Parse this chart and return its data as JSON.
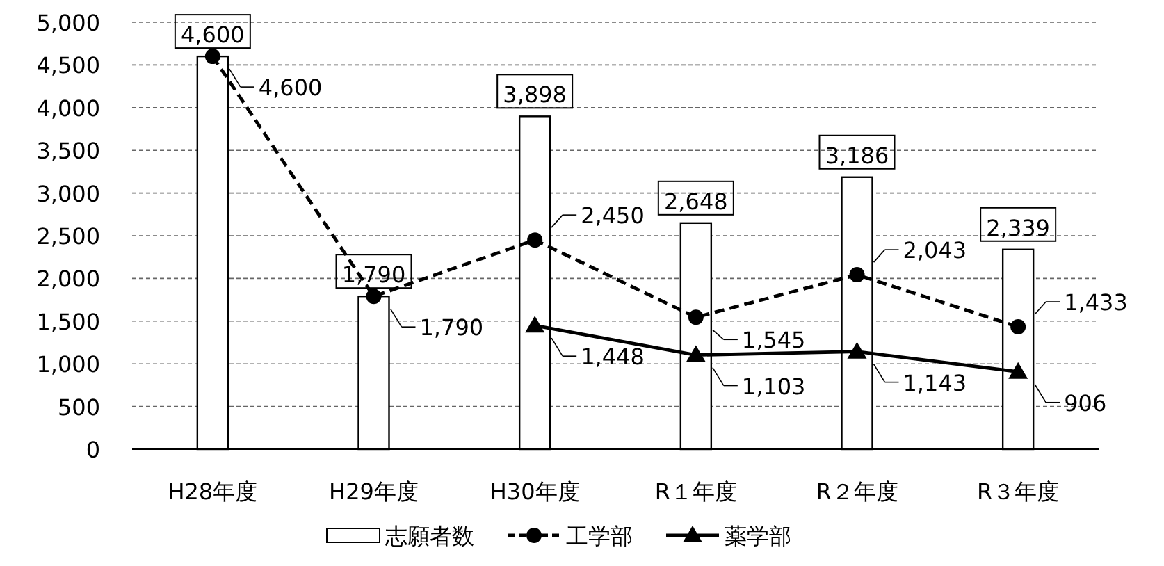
{
  "chart_data": {
    "type": "bar",
    "categories": [
      "H28年度",
      "H29年度",
      "H30年度",
      "R１年度",
      "R２年度",
      "R３年度"
    ],
    "series": [
      {
        "name": "志願者数",
        "type": "bar",
        "color": "#ffffff",
        "values": [
          4600,
          1790,
          3898,
          2648,
          3186,
          2339
        ],
        "value_labels": [
          "4,600",
          "1,790",
          "3,898",
          "2,648",
          "3,186",
          "2,339"
        ]
      },
      {
        "name": "工学部",
        "type": "line",
        "color": "#000000",
        "line_style": "dashed",
        "marker": "circle",
        "values": [
          4600,
          1790,
          2450,
          1545,
          2043,
          1433
        ],
        "value_labels": [
          "4,600",
          "1,790",
          "2,450",
          "1,545",
          "2,043",
          "1,433"
        ]
      },
      {
        "name": "薬学部",
        "type": "line",
        "color": "#000000",
        "line_style": "solid",
        "marker": "triangle",
        "values": [
          null,
          null,
          1448,
          1103,
          1143,
          906
        ],
        "value_labels": [
          null,
          null,
          "1,448",
          "1,103",
          "1,143",
          "906"
        ]
      }
    ],
    "ylim": [
      0,
      5000
    ],
    "yticks": [
      {
        "value": 0,
        "label": "0"
      },
      {
        "value": 500,
        "label": "500"
      },
      {
        "value": 1000,
        "label": "1,000"
      },
      {
        "value": 1500,
        "label": "1,500"
      },
      {
        "value": 2000,
        "label": "2,000"
      },
      {
        "value": 2500,
        "label": "2,500"
      },
      {
        "value": 3000,
        "label": "3,000"
      },
      {
        "value": 3500,
        "label": "3,500"
      },
      {
        "value": 4000,
        "label": "4,000"
      },
      {
        "value": 4500,
        "label": "4,500"
      },
      {
        "value": 5000,
        "label": "5,000"
      }
    ],
    "grid": "y",
    "legend": "bottom"
  }
}
